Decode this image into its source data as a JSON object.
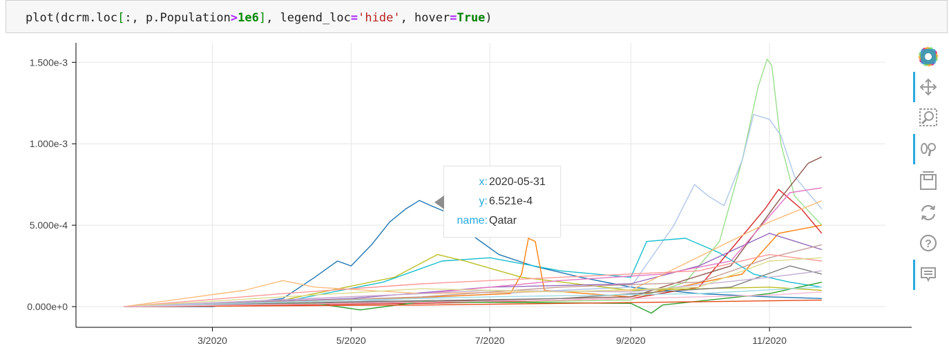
{
  "code_cell": {
    "tokens": [
      {
        "t": "plot(dcrm.loc",
        "c": ""
      },
      {
        "t": "[",
        "c": "tk-br"
      },
      {
        "t": ":, p.Population",
        "c": ""
      },
      {
        "t": ">",
        "c": "tk-op"
      },
      {
        "t": "1e6",
        "c": "tk-num"
      },
      {
        "t": "]",
        "c": "tk-br"
      },
      {
        "t": ", legend_loc",
        "c": ""
      },
      {
        "t": "=",
        "c": "tk-op"
      },
      {
        "t": "'hide'",
        "c": "tk-str"
      },
      {
        "t": ", hover",
        "c": ""
      },
      {
        "t": "=",
        "c": "tk-op"
      },
      {
        "t": "True",
        "c": "tk-kw"
      },
      {
        "t": ")",
        "c": ""
      }
    ]
  },
  "tooltip": {
    "rows": [
      {
        "key": "x:",
        "value": "2020-05-31"
      },
      {
        "key": "y:",
        "value": "6.521e-4"
      },
      {
        "key": "name:",
        "value": "Qatar"
      }
    ]
  },
  "toolbar": {
    "tools": [
      "bokeh-logo-icon",
      "pan-icon",
      "box-zoom-icon",
      "wheel-zoom-icon",
      "save-icon",
      "reset-icon",
      "help-icon",
      "hover-icon"
    ]
  },
  "chart_data": {
    "type": "line",
    "title": "",
    "xlabel": "",
    "ylabel": "",
    "x_axis_type": "datetime",
    "xlim": [
      "2020-01-01",
      "2020-12-22"
    ],
    "ylim": [
      -0.00011,
      0.00162
    ],
    "x_ticks": [
      {
        "date": "2020-03-01",
        "label": "3/2020"
      },
      {
        "date": "2020-05-01",
        "label": "5/2020"
      },
      {
        "date": "2020-07-01",
        "label": "7/2020"
      },
      {
        "date": "2020-09-01",
        "label": "9/2020"
      },
      {
        "date": "2020-11-01",
        "label": "11/2020"
      }
    ],
    "y_ticks": [
      {
        "value": 0,
        "label": "0.000e+0"
      },
      {
        "value": 0.0005,
        "label": "5.000e-4"
      },
      {
        "value": 0.001,
        "label": "1.000e-3"
      },
      {
        "value": 0.0015,
        "label": "1.500e-3"
      }
    ],
    "grid": true,
    "legend": "hidden",
    "highlighted_point": {
      "x": "2020-05-31",
      "y": 0.0006521,
      "series": "Qatar"
    },
    "series": [
      {
        "color": "#1f77b4",
        "points": [
          [
            "2020-01-22",
            0
          ],
          [
            "2020-03-01",
            0
          ],
          [
            "2020-04-01",
            5e-05
          ],
          [
            "2020-04-15",
            0.00018
          ],
          [
            "2020-04-25",
            0.00028
          ],
          [
            "2020-05-01",
            0.00025
          ],
          [
            "2020-05-10",
            0.00038
          ],
          [
            "2020-05-18",
            0.00052
          ],
          [
            "2020-05-25",
            0.0006
          ],
          [
            "2020-05-31",
            0.0006521
          ],
          [
            "2020-06-05",
            0.00062
          ],
          [
            "2020-06-12",
            0.00058
          ],
          [
            "2020-06-18",
            0.0005
          ],
          [
            "2020-06-25",
            0.00042
          ],
          [
            "2020-07-05",
            0.00032
          ],
          [
            "2020-07-20",
            0.00025
          ],
          [
            "2020-08-10",
            0.00018
          ],
          [
            "2020-09-01",
            0.00012
          ],
          [
            "2020-10-01",
            8e-05
          ],
          [
            "2020-11-01",
            6e-05
          ],
          [
            "2020-11-24",
            5e-05
          ]
        ]
      },
      {
        "color": "#98df8a",
        "points": [
          [
            "2020-01-22",
            0
          ],
          [
            "2020-06-01",
            2e-05
          ],
          [
            "2020-09-01",
            4e-05
          ],
          [
            "2020-09-25",
            0.00015
          ],
          [
            "2020-10-10",
            0.0004
          ],
          [
            "2020-10-20",
            0.0009
          ],
          [
            "2020-10-27",
            0.00135
          ],
          [
            "2020-10-31",
            0.00152
          ],
          [
            "2020-11-02",
            0.00148
          ],
          [
            "2020-11-06",
            0.001
          ],
          [
            "2020-11-12",
            0.00068
          ],
          [
            "2020-11-24",
            0.0005
          ]
        ]
      },
      {
        "color": "#aec7e8",
        "points": [
          [
            "2020-01-22",
            0
          ],
          [
            "2020-05-01",
            3e-05
          ],
          [
            "2020-08-01",
            0.0001
          ],
          [
            "2020-09-01",
            0.00012
          ],
          [
            "2020-09-20",
            0.0005
          ],
          [
            "2020-09-29",
            0.00075
          ],
          [
            "2020-10-05",
            0.00068
          ],
          [
            "2020-10-12",
            0.00062
          ],
          [
            "2020-10-20",
            0.0009
          ],
          [
            "2020-10-25",
            0.00118
          ],
          [
            "2020-11-01",
            0.00115
          ],
          [
            "2020-11-06",
            0.00105
          ],
          [
            "2020-11-12",
            0.0008
          ],
          [
            "2020-11-24",
            0.0006
          ]
        ]
      },
      {
        "color": "#17becf",
        "points": [
          [
            "2020-01-22",
            0
          ],
          [
            "2020-04-01",
            3e-05
          ],
          [
            "2020-05-15",
            0.00015
          ],
          [
            "2020-06-10",
            0.00028
          ],
          [
            "2020-07-01",
            0.0003
          ],
          [
            "2020-08-01",
            0.00022
          ],
          [
            "2020-09-01",
            0.00018
          ],
          [
            "2020-09-08",
            0.0004
          ],
          [
            "2020-09-25",
            0.00042
          ],
          [
            "2020-10-10",
            0.00033
          ],
          [
            "2020-10-25",
            0.0002
          ],
          [
            "2020-11-10",
            0.00015
          ],
          [
            "2020-11-24",
            0.00012
          ]
        ]
      },
      {
        "color": "#ff7f0e",
        "points": [
          [
            "2020-01-22",
            0
          ],
          [
            "2020-05-01",
            4e-05
          ],
          [
            "2020-07-10",
            8e-05
          ],
          [
            "2020-07-15",
            0.0002
          ],
          [
            "2020-07-18",
            0.00042
          ],
          [
            "2020-07-21",
            0.0004
          ],
          [
            "2020-07-25",
            0.0001
          ],
          [
            "2020-09-01",
            6e-05
          ],
          [
            "2020-10-20",
            0.0002
          ],
          [
            "2020-11-05",
            0.00045
          ],
          [
            "2020-11-24",
            0.0005
          ]
        ]
      },
      {
        "color": "#d62728",
        "points": [
          [
            "2020-01-22",
            0
          ],
          [
            "2020-06-01",
            2e-05
          ],
          [
            "2020-09-01",
            5e-05
          ],
          [
            "2020-10-01",
            0.00012
          ],
          [
            "2020-10-15",
            0.00035
          ],
          [
            "2020-10-30",
            0.0006
          ],
          [
            "2020-11-05",
            0.00072
          ],
          [
            "2020-11-15",
            0.0006
          ],
          [
            "2020-11-24",
            0.00045
          ]
        ]
      },
      {
        "color": "#8c564b",
        "points": [
          [
            "2020-01-22",
            0
          ],
          [
            "2020-06-01",
            3e-05
          ],
          [
            "2020-09-01",
            6e-05
          ],
          [
            "2020-10-15",
            0.00025
          ],
          [
            "2020-11-05",
            0.00065
          ],
          [
            "2020-11-18",
            0.00088
          ],
          [
            "2020-11-24",
            0.00092
          ]
        ]
      },
      {
        "color": "#bcbd22",
        "points": [
          [
            "2020-01-22",
            0
          ],
          [
            "2020-04-01",
            4e-05
          ],
          [
            "2020-05-20",
            0.00018
          ],
          [
            "2020-06-08",
            0.00032
          ],
          [
            "2020-06-20",
            0.00028
          ],
          [
            "2020-07-15",
            0.00018
          ],
          [
            "2020-09-01",
            0.0001
          ],
          [
            "2020-11-01",
            0.00012
          ],
          [
            "2020-11-24",
            0.0001
          ]
        ]
      },
      {
        "color": "#9467bd",
        "points": [
          [
            "2020-01-22",
            0
          ],
          [
            "2020-05-01",
            5e-05
          ],
          [
            "2020-07-01",
            0.00012
          ],
          [
            "2020-09-01",
            0.00014
          ],
          [
            "2020-10-01",
            0.00025
          ],
          [
            "2020-11-01",
            0.00045
          ],
          [
            "2020-11-24",
            0.00035
          ]
        ]
      },
      {
        "color": "#e377c2",
        "points": [
          [
            "2020-01-22",
            0
          ],
          [
            "2020-06-01",
            8e-05
          ],
          [
            "2020-08-01",
            0.00016
          ],
          [
            "2020-09-15",
            0.0002
          ],
          [
            "2020-10-15",
            0.00028
          ],
          [
            "2020-11-10",
            0.0007
          ],
          [
            "2020-11-24",
            0.00073
          ]
        ]
      },
      {
        "color": "#ffbb78",
        "points": [
          [
            "2020-01-22",
            0
          ],
          [
            "2020-03-15",
            0.0001
          ],
          [
            "2020-04-01",
            0.00016
          ],
          [
            "2020-04-15",
            0.00012
          ],
          [
            "2020-06-01",
            8e-05
          ],
          [
            "2020-09-01",
            0.0001
          ],
          [
            "2020-11-01",
            0.00052
          ],
          [
            "2020-11-24",
            0.00065
          ]
        ]
      },
      {
        "color": "#2ca02c",
        "points": [
          [
            "2020-01-22",
            0
          ],
          [
            "2020-04-15",
            2e-05
          ],
          [
            "2020-05-05",
            -2e-05
          ],
          [
            "2020-06-01",
            3e-05
          ],
          [
            "2020-09-01",
            2e-05
          ],
          [
            "2020-09-10",
            -4e-05
          ],
          [
            "2020-09-15",
            1e-05
          ],
          [
            "2020-11-01",
            8e-05
          ],
          [
            "2020-11-24",
            0.00015
          ]
        ]
      },
      {
        "color": "#c49c94",
        "points": [
          [
            "2020-01-22",
            0
          ],
          [
            "2020-06-01",
            6e-05
          ],
          [
            "2020-08-01",
            0.00012
          ],
          [
            "2020-10-01",
            0.00015
          ],
          [
            "2020-11-01",
            0.0003
          ],
          [
            "2020-11-24",
            0.00038
          ]
        ]
      },
      {
        "color": "#ff9896",
        "points": [
          [
            "2020-01-22",
            0
          ],
          [
            "2020-04-01",
            8e-05
          ],
          [
            "2020-06-01",
            0.00014
          ],
          [
            "2020-08-01",
            0.00018
          ],
          [
            "2020-10-01",
            0.00022
          ],
          [
            "2020-11-01",
            0.00032
          ],
          [
            "2020-11-24",
            0.00028
          ]
        ]
      },
      {
        "color": "#7f7f7f",
        "points": [
          [
            "2020-01-22",
            0
          ],
          [
            "2020-05-01",
            3e-05
          ],
          [
            "2020-08-01",
            5e-05
          ],
          [
            "2020-10-15",
            0.00012
          ],
          [
            "2020-11-10",
            0.00025
          ],
          [
            "2020-11-24",
            0.0002
          ]
        ]
      },
      {
        "color": "#c5b0d5",
        "points": [
          [
            "2020-01-22",
            0
          ],
          [
            "2020-05-01",
            6e-05
          ],
          [
            "2020-07-01",
            0.0001
          ],
          [
            "2020-09-01",
            9e-05
          ],
          [
            "2020-11-01",
            0.00018
          ],
          [
            "2020-11-24",
            0.00022
          ]
        ]
      },
      {
        "color": "#dbdb8d",
        "points": [
          [
            "2020-01-22",
            0
          ],
          [
            "2020-04-01",
            6e-05
          ],
          [
            "2020-06-01",
            0.00011
          ],
          [
            "2020-08-01",
            9e-05
          ],
          [
            "2020-10-01",
            0.00012
          ],
          [
            "2020-11-01",
            0.00028
          ],
          [
            "2020-11-24",
            0.0003
          ]
        ]
      },
      {
        "color": "#9edae5",
        "points": [
          [
            "2020-01-22",
            0
          ],
          [
            "2020-05-01",
            4e-05
          ],
          [
            "2020-07-01",
            6e-05
          ],
          [
            "2020-10-01",
            8e-05
          ],
          [
            "2020-11-24",
            0.00012
          ]
        ]
      },
      {
        "color": "#e64a19",
        "points": [
          [
            "2020-01-22",
            0
          ],
          [
            "2020-06-01",
            1e-05
          ],
          [
            "2020-10-01",
            3e-05
          ],
          [
            "2020-11-24",
            4e-05
          ]
        ]
      },
      {
        "color": "#f7b6d2",
        "points": [
          [
            "2020-01-22",
            0
          ],
          [
            "2020-05-01",
            2e-05
          ],
          [
            "2020-08-01",
            4e-05
          ],
          [
            "2020-11-01",
            7e-05
          ],
          [
            "2020-11-24",
            9e-05
          ]
        ]
      }
    ]
  }
}
